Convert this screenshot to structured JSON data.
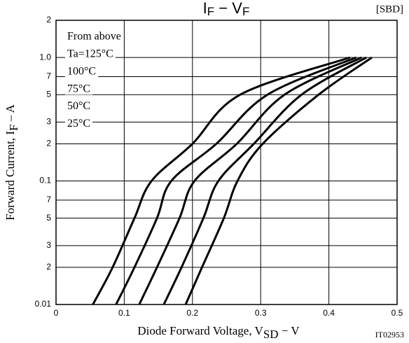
{
  "chart_data": {
    "type": "line",
    "title": [
      "I",
      "F",
      " − V",
      "F"
    ],
    "tag": "[SBD]",
    "code": "IT02953",
    "x_label": [
      "Diode Forward Voltage, V",
      "SD",
      " − V"
    ],
    "y_label": [
      "Forward Current, I",
      "F",
      " – A"
    ],
    "legend_title": "From above",
    "log_y": true,
    "grid": true,
    "xlim": [
      0,
      0.5
    ],
    "xticks": [
      0,
      0.1,
      0.2,
      0.3,
      0.4,
      0.5
    ],
    "ylim": [
      0.01,
      2
    ],
    "yticks": [
      2,
      {
        "value": 1,
        "label": "1.0"
      },
      {
        "value": 0.7,
        "label": "7"
      },
      {
        "value": 0.5,
        "label": "5"
      },
      {
        "value": 0.3,
        "label": "3"
      },
      {
        "value": 0.2,
        "label": "2"
      },
      0.1,
      {
        "value": 0.07,
        "label": "7"
      },
      {
        "value": 0.05,
        "label": "5"
      },
      {
        "value": 0.03,
        "label": "3"
      },
      {
        "value": 0.02,
        "label": "2"
      },
      0.01
    ],
    "series": [
      {
        "name": "Ta=125°C",
        "color": "#000000",
        "x": [
          0.054,
          0.083,
          0.115,
          0.14,
          0.2,
          0.27,
          0.431
        ],
        "values": [
          0.01,
          0.02,
          0.05,
          0.1,
          0.2,
          0.5,
          1.0
        ]
      },
      {
        "name": "100°C",
        "color": "#000000",
        "x": [
          0.088,
          0.115,
          0.148,
          0.169,
          0.235,
          0.31,
          0.44
        ],
        "values": [
          0.01,
          0.02,
          0.05,
          0.1,
          0.2,
          0.5,
          1.0
        ]
      },
      {
        "name": "75°C",
        "color": "#000000",
        "x": [
          0.122,
          0.148,
          0.181,
          0.203,
          0.265,
          0.335,
          0.448
        ],
        "values": [
          0.01,
          0.02,
          0.05,
          0.1,
          0.2,
          0.5,
          1.0
        ]
      },
      {
        "name": "50°C",
        "color": "#000000",
        "x": [
          0.158,
          0.184,
          0.216,
          0.238,
          0.29,
          0.36,
          0.455
        ],
        "values": [
          0.01,
          0.02,
          0.05,
          0.1,
          0.2,
          0.5,
          1.0
        ]
      },
      {
        "name": "25°C",
        "color": "#000000",
        "x": [
          0.19,
          0.214,
          0.246,
          0.266,
          0.303,
          0.385,
          0.463
        ],
        "values": [
          0.01,
          0.02,
          0.05,
          0.1,
          0.2,
          0.5,
          1.0
        ]
      }
    ]
  }
}
